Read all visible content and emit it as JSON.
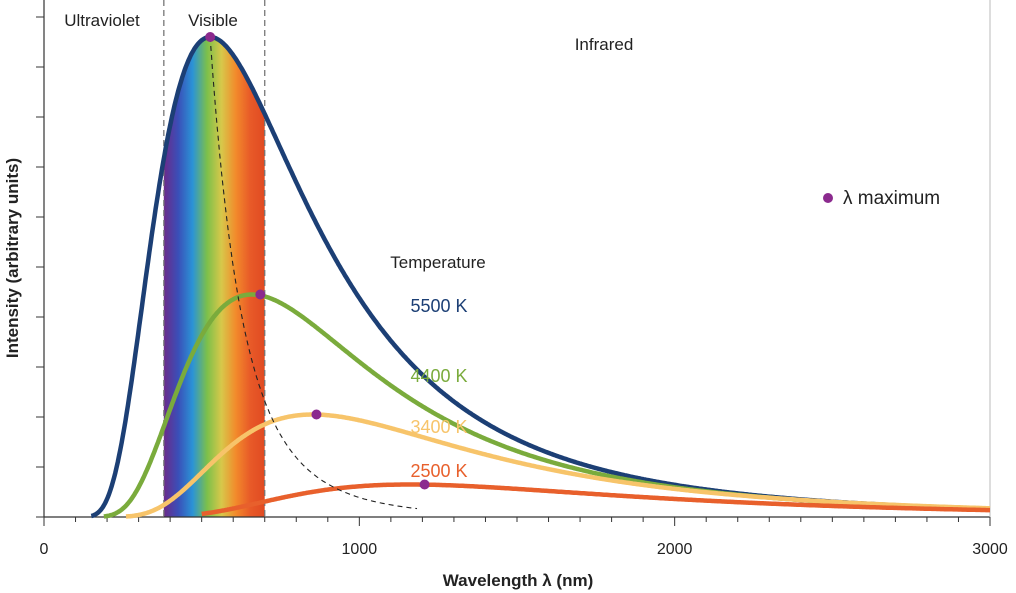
{
  "chart_data": {
    "type": "line",
    "xlabel": "Wavelength λ (nm)",
    "ylabel": "Intensity (arbitrary units)",
    "xlim": [
      0,
      3000
    ],
    "ylim": [
      0,
      10
    ],
    "x_ticks": [
      0,
      1000,
      2000,
      3000
    ],
    "x_tick_labels": [
      "0",
      "1000",
      "2000",
      "3000"
    ],
    "y_tick_labels": [],
    "regions": [
      {
        "name": "Ultraviolet",
        "from": 0,
        "to": 380
      },
      {
        "name": "Visible",
        "from": 380,
        "to": 700
      },
      {
        "name": "Infrared",
        "from": 700,
        "to": 3000
      }
    ],
    "legend_title": "Temperature",
    "marker_label": "λ maximum",
    "series": [
      {
        "name": "5500 K",
        "temperature": 5500,
        "color": "#1c3f75",
        "peak_x": 527,
        "peak_y": 9.6
      },
      {
        "name": "4400 K",
        "temperature": 4400,
        "color": "#7aab3c",
        "peak_x": 686,
        "peak_y": 4.45
      },
      {
        "name": "3400 K",
        "temperature": 3400,
        "color": "#f7c46a",
        "peak_x": 864,
        "peak_y": 2.05
      },
      {
        "name": "2500 K",
        "temperature": 2500,
        "color": "#e8602c",
        "peak_x": 1207,
        "peak_y": 0.65
      }
    ],
    "peak_marker_color": "#8b2a8e",
    "spectrum_colors": [
      "#6b2a8a",
      "#3a4fb8",
      "#2b93d6",
      "#7cc04a",
      "#d7c84a",
      "#f28a2b",
      "#e85a28",
      "#e04a22"
    ]
  }
}
